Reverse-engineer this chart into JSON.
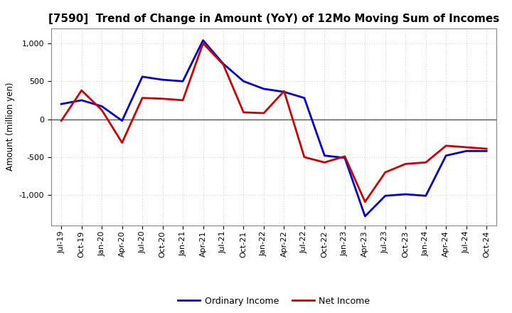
{
  "title": "[7590]  Trend of Change in Amount (YoY) of 12Mo Moving Sum of Incomes",
  "ylabel": "Amount (million yen)",
  "background_color": "#ffffff",
  "plot_bg_color": "#ffffff",
  "grid_color": "#bbbbbb",
  "ordinary_income_color": "#0000cc",
  "net_income_color": "#cc0000",
  "legend_ordinary": "Ordinary Income",
  "legend_net": "Net Income",
  "x_labels": [
    "Jul-19",
    "Oct-19",
    "Jan-20",
    "Apr-20",
    "Jul-20",
    "Oct-20",
    "Jan-21",
    "Apr-21",
    "Jul-21",
    "Oct-21",
    "Jan-22",
    "Apr-22",
    "Jul-22",
    "Oct-22",
    "Jan-23",
    "Apr-23",
    "Jul-23",
    "Oct-23",
    "Jan-24",
    "Apr-24",
    "Jul-24",
    "Oct-24"
  ],
  "ordinary_income": [
    200,
    250,
    170,
    -20,
    560,
    520,
    500,
    1040,
    730,
    500,
    400,
    360,
    280,
    -480,
    -510,
    -1280,
    -1010,
    -990,
    -1010,
    -480,
    -420,
    -420
  ],
  "net_income": [
    -20,
    380,
    120,
    -310,
    280,
    270,
    250,
    1000,
    720,
    90,
    80,
    370,
    -500,
    -570,
    -490,
    -1090,
    -700,
    -590,
    -570,
    -350,
    -370,
    -390
  ],
  "ylim": [
    -1400,
    1200
  ],
  "yticks": [
    -1000,
    -500,
    0,
    500,
    1000
  ],
  "title_fontsize": 11,
  "axis_label_fontsize": 8.5,
  "tick_fontsize": 8,
  "legend_fontsize": 9,
  "linewidth": 2.0
}
